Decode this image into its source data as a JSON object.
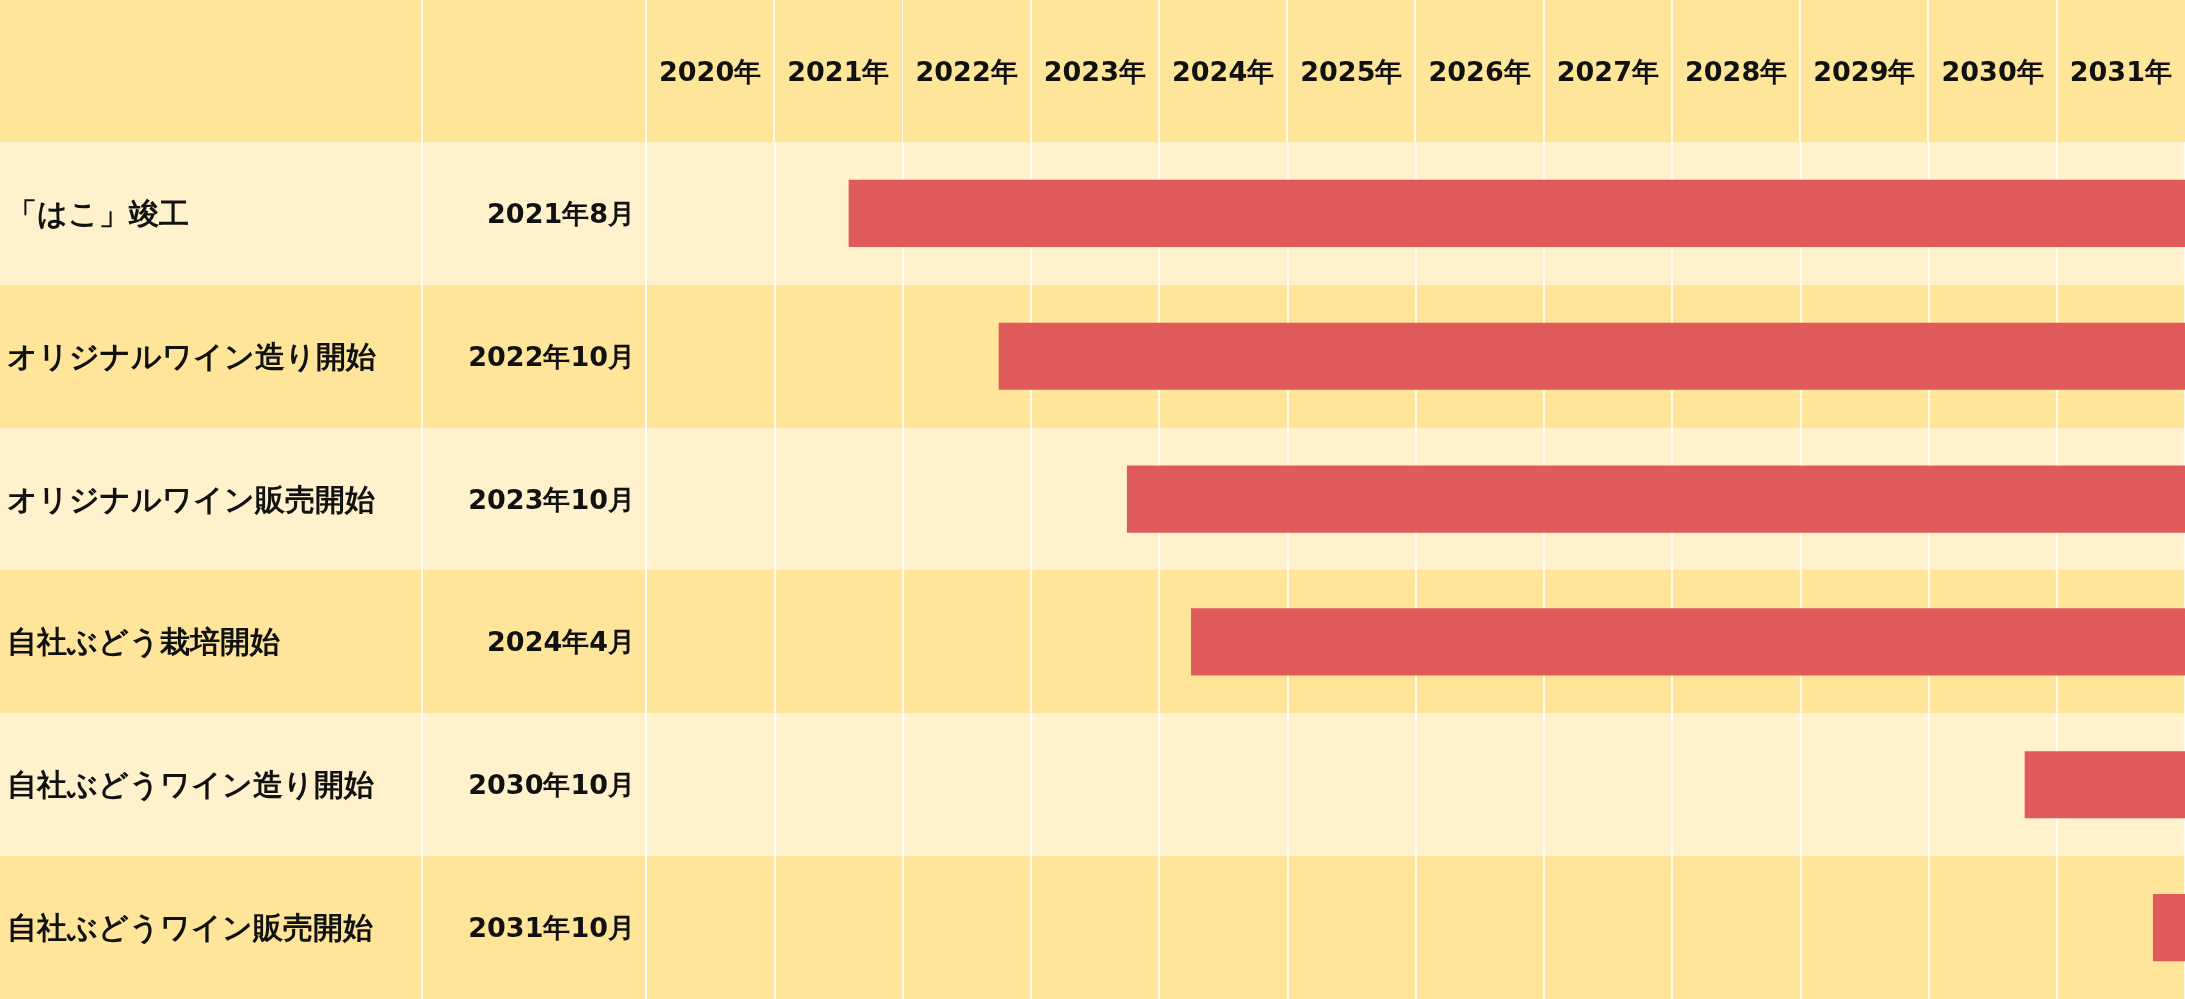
{
  "chart_data": {
    "type": "bar",
    "orientation": "horizontal",
    "categories": [
      "「はこ」竣工",
      "オリジナルワイン造り開始",
      "オリジナルワイン販売開始",
      "自社ぶどう栽培開始",
      "自社ぶどうワイン造り開始",
      "自社ぶどうワイン販売開始"
    ],
    "y2_categories": [
      "2021年8月",
      "2022年10月",
      "2023年10月",
      "2024年4月",
      "2030年10月",
      "2031年10月"
    ],
    "base": [
      2021.58,
      2022.75,
      2023.75,
      2024.25,
      2030.75,
      2031.75
    ],
    "values": [
      10.42,
      9.25,
      8.25,
      7.75,
      1.25,
      0.25
    ],
    "color": "#e05a5a",
    "xlim": [
      2020,
      2032
    ],
    "xticks": [
      {
        "value": 2020,
        "label": null
      },
      {
        "value": 2020.5,
        "label": "2020年"
      },
      {
        "value": 2021,
        "label": null
      },
      {
        "value": 2021.5,
        "label": "2021年"
      },
      {
        "value": 2022,
        "label": null
      },
      {
        "value": 2022.5,
        "label": "2022年"
      },
      {
        "value": 2023,
        "label": null
      },
      {
        "value": 2023.5,
        "label": "2023年"
      },
      {
        "value": 2024,
        "label": null
      },
      {
        "value": 2024.5,
        "label": "2024年"
      },
      {
        "value": 2025,
        "label": null
      },
      {
        "value": 2025.5,
        "label": "2025年"
      },
      {
        "value": 2026,
        "label": null
      },
      {
        "value": 2026.5,
        "label": "2026年"
      },
      {
        "value": 2027,
        "label": null
      },
      {
        "value": 2027.5,
        "label": "2027年"
      },
      {
        "value": 2028,
        "label": null
      },
      {
        "value": 2028.5,
        "label": "2028年"
      },
      {
        "value": 2029,
        "label": null
      },
      {
        "value": 2029.5,
        "label": "2029年"
      },
      {
        "value": 2030,
        "label": null
      },
      {
        "value": 2030.5,
        "label": "2030年"
      },
      {
        "value": 2031,
        "label": null
      },
      {
        "value": 2031.5,
        "label": "2031年"
      },
      {
        "value": 2032,
        "label": null
      }
    ],
    "grid": "x"
  }
}
